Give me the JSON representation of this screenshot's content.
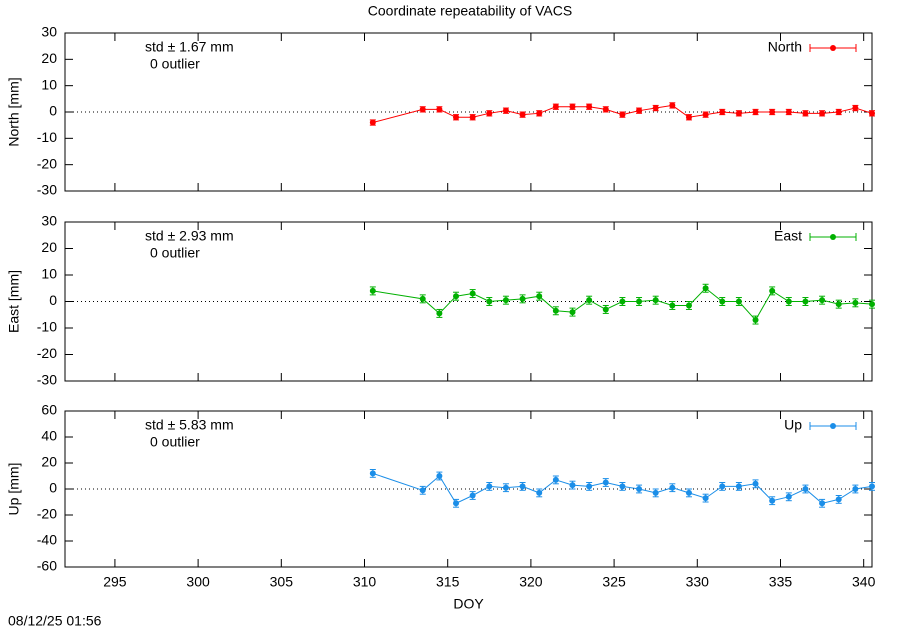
{
  "title": "Coordinate repeatability of VACS",
  "timestamp": "08/12/25 01:56",
  "chart_data": [
    {
      "type": "line",
      "y_label": "North [mm]",
      "annotations": [
        "std ± 1.67 mm",
        "0 outlier"
      ],
      "xlim": [
        292,
        340.5
      ],
      "xticks": [
        295,
        300,
        305,
        310,
        315,
        320,
        325,
        330,
        335,
        340
      ],
      "ylim": [
        -30,
        30
      ],
      "yticks": [
        -30,
        -20,
        -10,
        0,
        10,
        20,
        30
      ],
      "x": [
        310.5,
        313.5,
        314.5,
        315.5,
        316.5,
        317.5,
        318.5,
        319.5,
        320.5,
        321.5,
        322.5,
        323.5,
        324.5,
        325.5,
        326.5,
        327.5,
        328.5,
        329.5,
        330.5,
        331.5,
        332.5,
        333.5,
        334.5,
        335.5,
        336.5,
        337.5,
        338.5,
        339.5,
        340.5
      ],
      "series": [
        {
          "name": "North",
          "color": "#ff0000",
          "error": 1,
          "values": [
            -4,
            1,
            1,
            -2,
            -2,
            -0.5,
            0.5,
            -1,
            -0.5,
            2,
            2,
            2,
            1,
            -1,
            0.5,
            1.5,
            2.5,
            -2,
            -1,
            0,
            -0.5,
            0,
            0,
            0,
            -0.5,
            -0.5,
            0,
            1.5,
            -0.5
          ]
        }
      ]
    },
    {
      "type": "line",
      "y_label": "East [mm]",
      "annotations": [
        "std ± 2.93 mm",
        "0 outlier"
      ],
      "xlim": [
        292,
        340.5
      ],
      "xticks": [
        295,
        300,
        305,
        310,
        315,
        320,
        325,
        330,
        335,
        340
      ],
      "ylim": [
        -30,
        30
      ],
      "yticks": [
        -30,
        -20,
        -10,
        0,
        10,
        20,
        30
      ],
      "x": [
        310.5,
        313.5,
        314.5,
        315.5,
        316.5,
        317.5,
        318.5,
        319.5,
        320.5,
        321.5,
        322.5,
        323.5,
        324.5,
        325.5,
        326.5,
        327.5,
        328.5,
        329.5,
        330.5,
        331.5,
        332.5,
        333.5,
        334.5,
        335.5,
        336.5,
        337.5,
        338.5,
        339.5,
        340.5
      ],
      "series": [
        {
          "name": "East",
          "color": "#00b000",
          "error": 1.5,
          "values": [
            4,
            1,
            -4.5,
            2,
            3,
            0,
            0.5,
            1,
            2,
            -3.5,
            -4,
            0.5,
            -3,
            0,
            0,
            0.5,
            -1.5,
            -1.5,
            5,
            0,
            0,
            -7,
            4,
            0,
            0,
            0.5,
            -1,
            -0.5,
            -1
          ]
        }
      ]
    },
    {
      "type": "line",
      "y_label": "Up [mm]",
      "x_label": "DOY",
      "annotations": [
        "std ± 5.83 mm",
        "0 outlier"
      ],
      "xlim": [
        292,
        340.5
      ],
      "xticks": [
        295,
        300,
        305,
        310,
        315,
        320,
        325,
        330,
        335,
        340
      ],
      "ylim": [
        -60,
        60
      ],
      "yticks": [
        -60,
        -40,
        -20,
        0,
        20,
        40,
        60
      ],
      "x": [
        310.5,
        313.5,
        314.5,
        315.5,
        316.5,
        317.5,
        318.5,
        319.5,
        320.5,
        321.5,
        322.5,
        323.5,
        324.5,
        325.5,
        326.5,
        327.5,
        328.5,
        329.5,
        330.5,
        331.5,
        332.5,
        333.5,
        334.5,
        335.5,
        336.5,
        337.5,
        338.5,
        339.5,
        340.5
      ],
      "series": [
        {
          "name": "Up",
          "color": "#1b8ee8",
          "error": 3,
          "values": [
            12,
            -1,
            10,
            -11,
            -5,
            2,
            1,
            2,
            -3,
            7,
            3,
            2,
            5,
            2,
            0,
            -3,
            1,
            -3,
            -7,
            2,
            2,
            4,
            -9,
            -6,
            0,
            -11,
            -8,
            0,
            2
          ]
        }
      ]
    }
  ]
}
